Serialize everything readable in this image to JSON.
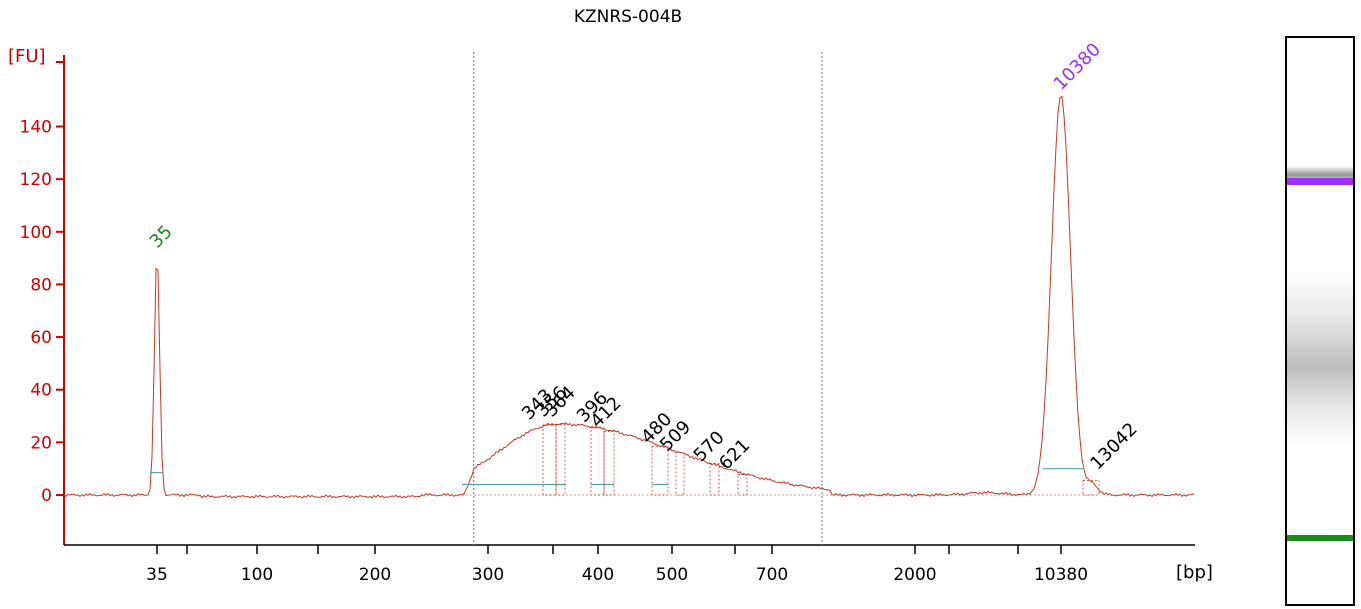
{
  "chart_data": {
    "type": "line",
    "title": "KZNRS-004B",
    "ylabel": "[FU]",
    "xlabel": "[bp]",
    "ylim": [
      -15,
      160
    ],
    "yticks": [
      0,
      20,
      40,
      60,
      80,
      100,
      120,
      140
    ],
    "xtick_labels": [
      "35",
      "100",
      "200",
      "300",
      "400",
      "500",
      "700",
      "2000",
      "10380"
    ],
    "colors": {
      "trace": "#c0392b",
      "axis": "#d00000",
      "lower_marker": "#1a8a1a",
      "upper_marker": "#9b30ff",
      "baseline": "#5aa0a0",
      "text": "#000000"
    },
    "markers": [
      {
        "label": "35",
        "size_bp": 35,
        "height_fu": 92,
        "role": "lower",
        "color": "#1a8a1a"
      },
      {
        "label": "10380",
        "size_bp": 10380,
        "height_fu": 152,
        "role": "upper",
        "color": "#9b30ff"
      }
    ],
    "smear_region_bp": [
      285,
      1010
    ],
    "smear_peak_fu": 27,
    "peak_labels": [
      {
        "label": "343",
        "size_bp": 343,
        "height_fu": 26
      },
      {
        "label": "356",
        "size_bp": 356,
        "height_fu": 27
      },
      {
        "label": "364",
        "size_bp": 364,
        "height_fu": 27
      },
      {
        "label": "396",
        "size_bp": 396,
        "height_fu": 25
      },
      {
        "label": "412",
        "size_bp": 412,
        "height_fu": 23
      },
      {
        "label": "480",
        "size_bp": 480,
        "height_fu": 17
      },
      {
        "label": "509",
        "size_bp": 509,
        "height_fu": 14
      },
      {
        "label": "570",
        "size_bp": 570,
        "height_fu": 10
      },
      {
        "label": "621",
        "size_bp": 621,
        "height_fu": 7
      },
      {
        "label": "13042",
        "size_bp": 13042,
        "height_fu": 7
      }
    ]
  },
  "gel": {
    "upper_band_color": "#9b30ff",
    "lower_band_color": "#1a8a1a"
  }
}
